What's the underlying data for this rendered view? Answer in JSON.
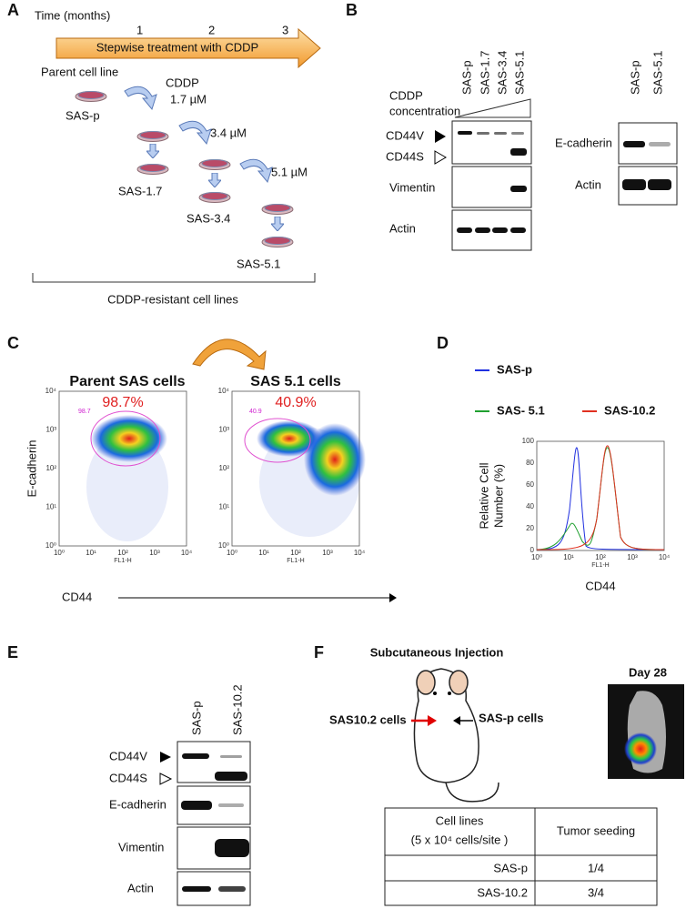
{
  "panels": {
    "A": {
      "label": "A",
      "time_axis": "Time (months)",
      "months": [
        "1",
        "2",
        "3"
      ],
      "arrow_text": "Stepwise treatment with CDDP",
      "parent_label": "Parent cell line",
      "cddp": "CDDP",
      "doses": [
        "1.7 µM",
        "3.4 µM",
        "5.1 µM"
      ],
      "cell_lines": [
        "SAS-p",
        "SAS-1.7",
        "SAS-3.4",
        "SAS-5.1"
      ],
      "bracket_label": "CDDP-resistant cell lines"
    },
    "B": {
      "label": "B",
      "lanes": [
        "SAS-p",
        "SAS-1.7",
        "SAS-3.4",
        "SAS-5.1"
      ],
      "concentration": [
        "CDDP",
        "concentration"
      ],
      "bands": [
        "CD44V",
        "CD44S",
        "Vimentin",
        "Actin"
      ],
      "right_lanes": [
        "SAS-p",
        "SAS-5.1"
      ],
      "right_bands": [
        "E-cadherin",
        "Actin"
      ]
    },
    "C": {
      "label": "C",
      "plots": [
        {
          "title": "Parent SAS cells",
          "percent": "98.7%",
          "gate": "98.7"
        },
        {
          "title": "SAS 5.1 cells",
          "percent": "40.9%",
          "gate": "40.9"
        }
      ],
      "y_label": "E-cadherin",
      "x_label": "CD44",
      "axis_ticks": [
        "10⁰",
        "10¹",
        "10²",
        "10³",
        "10⁴"
      ],
      "fl_label": "FL1-H"
    },
    "D": {
      "label": "D",
      "legend": [
        "SAS-p",
        "SAS- 5.1",
        "SAS-10.2"
      ],
      "y_label": [
        "Relative Cell",
        "Number (%)"
      ],
      "yticks": [
        "0",
        "20",
        "40",
        "60",
        "80",
        "100"
      ],
      "xticks": [
        "10⁰",
        "10¹",
        "10²",
        "10³",
        "10⁴"
      ],
      "fl_label": "FL1-H",
      "x_label": "CD44"
    },
    "E": {
      "label": "E",
      "lanes": [
        "SAS-p",
        "SAS-10.2"
      ],
      "bands": [
        "CD44V",
        "CD44S",
        "E-cadherin",
        "Vimentin",
        "Actin"
      ]
    },
    "F": {
      "label": "F",
      "title": "Subcutaneous Injection",
      "left_label": "SAS10.2 cells",
      "right_label": "SAS-p cells",
      "day": "Day 28",
      "table": {
        "header": [
          "Cell lines",
          "(5 x 10⁴ cells/site )",
          "Tumor seeding"
        ],
        "rows": [
          [
            "SAS-p",
            "1/4"
          ],
          [
            "SAS-10.2",
            "3/4"
          ]
        ]
      }
    }
  }
}
